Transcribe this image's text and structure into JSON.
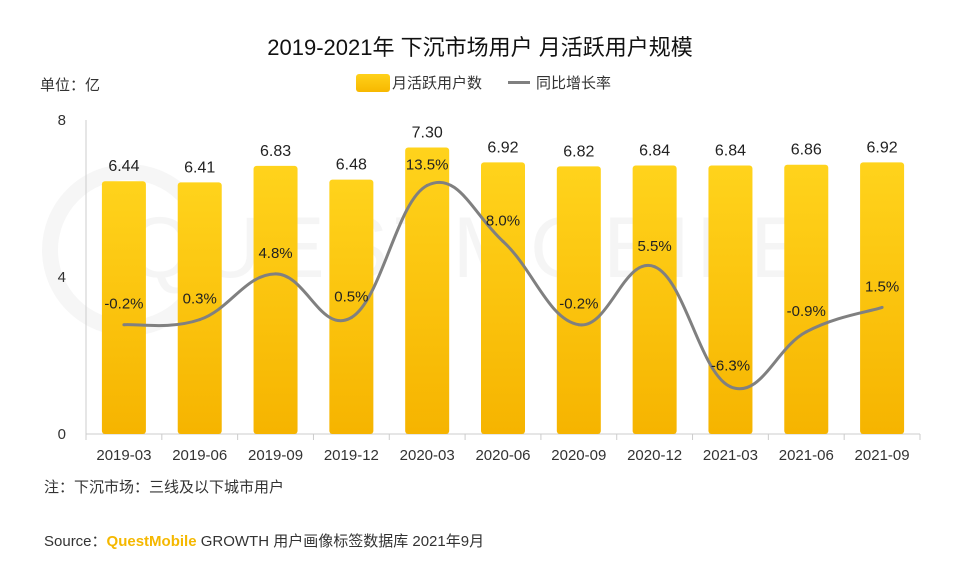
{
  "title": "2019-2021年 下沉市场用户 月活跃用户规模",
  "unit_label": "单位：亿",
  "legend": {
    "bar_label": "月活跃用户数",
    "line_label": "同比增长率"
  },
  "note": "注：下沉市场：三线及以下城市用户",
  "source": {
    "prefix": "Source：",
    "brand": "QuestMobile",
    "rest": " GROWTH 用户画像标签数据库 2021年9月"
  },
  "watermark": "QUESTMOBILE",
  "colors": {
    "bar_top": "#ffd31c",
    "bar_bottom": "#f6b400",
    "line": "#808080",
    "axis": "#cccccc"
  },
  "chart_data": {
    "type": "bar",
    "categories": [
      "2019-03",
      "2019-06",
      "2019-09",
      "2019-12",
      "2020-03",
      "2020-06",
      "2020-09",
      "2020-12",
      "2021-03",
      "2021-06",
      "2021-09"
    ],
    "series": [
      {
        "name": "月活跃用户数",
        "type": "bar",
        "values": [
          6.44,
          6.41,
          6.83,
          6.48,
          7.3,
          6.92,
          6.82,
          6.84,
          6.84,
          6.86,
          6.92
        ],
        "labels": [
          "6.44",
          "6.41",
          "6.83",
          "6.48",
          "7.30",
          "6.92",
          "6.82",
          "6.84",
          "6.84",
          "6.86",
          "6.92"
        ]
      },
      {
        "name": "同比增长率",
        "type": "line",
        "values": [
          -0.2,
          0.3,
          4.8,
          0.5,
          13.5,
          8.0,
          -0.2,
          5.5,
          -6.3,
          -0.9,
          1.5
        ],
        "labels": [
          "-0.2%",
          "0.3%",
          "4.8%",
          "0.5%",
          "13.5%",
          "8.0%",
          "-0.2%",
          "5.5%",
          "-6.3%",
          "-0.9%",
          "1.5%"
        ]
      }
    ],
    "yticks": [
      "0",
      "4",
      "8"
    ],
    "ylim": [
      0,
      8
    ]
  }
}
